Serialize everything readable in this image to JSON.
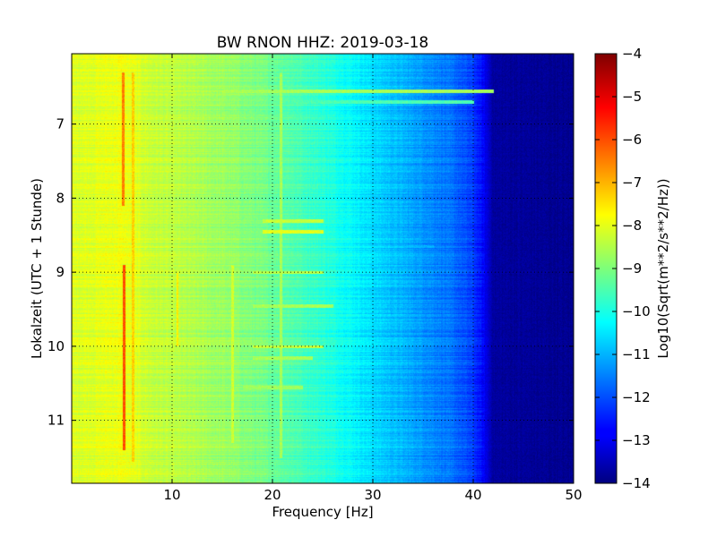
{
  "chart_data": {
    "type": "heatmap",
    "title": "BW RNON HHZ: 2019-03-18",
    "xlabel": "Frequency [Hz]",
    "ylabel": "Lokalzeit (UTC + 1 Stunde)",
    "xlim": [
      0,
      50
    ],
    "ylim": [
      11.85,
      6.05
    ],
    "x_ticks": [
      10,
      20,
      30,
      40,
      50
    ],
    "y_ticks": [
      7,
      8,
      9,
      10,
      11
    ],
    "grid": true,
    "colorbar": {
      "label": "Log10(Sqrt(m**2/s**2/Hz))",
      "range": [
        -14,
        -4
      ],
      "ticks": [
        -4,
        -5,
        -6,
        -7,
        -8,
        -9,
        -10,
        -11,
        -12,
        -13,
        -14
      ],
      "colormap": "jet"
    },
    "profile": {
      "frequency_hz": [
        0,
        3,
        5,
        8,
        10,
        13,
        16,
        20,
        24,
        27,
        30,
        33,
        36,
        38,
        40,
        41,
        42,
        50
      ],
      "log10_amplitude": [
        -8.1,
        -8.0,
        -7.9,
        -8.3,
        -8.4,
        -8.6,
        -8.8,
        -9.2,
        -9.7,
        -10.1,
        -10.6,
        -11.0,
        -11.4,
        -11.7,
        -12.2,
        -12.8,
        -13.7,
        -13.85
      ]
    },
    "features": [
      {
        "type": "vertical_line",
        "frequency_hz": 5.1,
        "time_range": [
          6.3,
          8.1
        ],
        "value": -6.5
      },
      {
        "type": "vertical_line",
        "frequency_hz": 5.2,
        "time_range": [
          8.9,
          11.4
        ],
        "value": -6.0
      },
      {
        "type": "vertical_line",
        "frequency_hz": 6.1,
        "time_range": [
          6.3,
          11.55
        ],
        "value": -7.3
      },
      {
        "type": "vertical_line",
        "frequency_hz": 10.5,
        "time_range": [
          9.0,
          10.0
        ],
        "value": -7.6
      },
      {
        "type": "vertical_line",
        "frequency_hz": 16.0,
        "time_range": [
          8.9,
          11.3
        ],
        "value": -8.2
      },
      {
        "type": "vertical_line",
        "frequency_hz": 20.8,
        "time_range": [
          6.3,
          11.5
        ],
        "value": -8.6
      },
      {
        "type": "horizontal_band",
        "time": 6.55,
        "frequency_range": [
          15,
          42
        ],
        "value": -8.6
      },
      {
        "type": "horizontal_band",
        "time": 6.7,
        "frequency_range": [
          18,
          40
        ],
        "value": -9.5
      },
      {
        "type": "horizontal_band",
        "time": 8.3,
        "frequency_range": [
          19,
          25
        ],
        "value": -8.3
      },
      {
        "type": "horizontal_band",
        "time": 8.45,
        "frequency_range": [
          19,
          25
        ],
        "value": -8.0
      },
      {
        "type": "horizontal_band",
        "time": 9.0,
        "frequency_range": [
          18,
          25
        ],
        "value": -8.4
      },
      {
        "type": "horizontal_band",
        "time": 9.45,
        "frequency_range": [
          18,
          26
        ],
        "value": -8.6
      },
      {
        "type": "horizontal_band",
        "time": 10.0,
        "frequency_range": [
          18,
          25
        ],
        "value": -8.3
      },
      {
        "type": "horizontal_band",
        "time": 10.15,
        "frequency_range": [
          18,
          24
        ],
        "value": -8.6
      },
      {
        "type": "horizontal_band",
        "time": 10.55,
        "frequency_range": [
          17,
          23
        ],
        "value": -8.7
      },
      {
        "type": "horizontal_band",
        "time": 10.65,
        "frequency_range": [
          28,
          33
        ],
        "value": -11.3
      },
      {
        "type": "horizontal_band",
        "time": 8.65,
        "frequency_range": [
          30,
          36
        ],
        "value": -11.0
      }
    ]
  }
}
